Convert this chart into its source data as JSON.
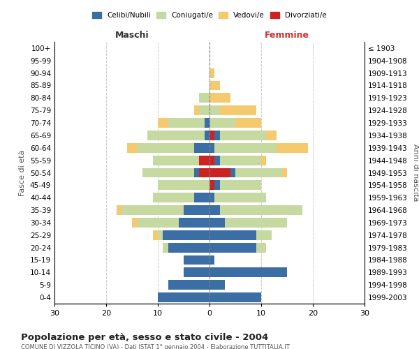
{
  "age_groups": [
    "0-4",
    "5-9",
    "10-14",
    "15-19",
    "20-24",
    "25-29",
    "30-34",
    "35-39",
    "40-44",
    "45-49",
    "50-54",
    "55-59",
    "60-64",
    "65-69",
    "70-74",
    "75-79",
    "80-84",
    "85-89",
    "90-94",
    "95-99",
    "100+"
  ],
  "birth_years": [
    "1999-2003",
    "1994-1998",
    "1989-1993",
    "1984-1988",
    "1979-1983",
    "1974-1978",
    "1969-1973",
    "1964-1968",
    "1959-1963",
    "1954-1958",
    "1949-1953",
    "1944-1948",
    "1939-1943",
    "1934-1938",
    "1929-1933",
    "1924-1928",
    "1919-1923",
    "1914-1918",
    "1909-1913",
    "1904-1908",
    "≤ 1903"
  ],
  "colors": {
    "celibi": "#3a6ea5",
    "coniugati": "#c5d9a0",
    "vedovi": "#f5c96e",
    "divorziati": "#cc2222"
  },
  "maschi": {
    "celibi": [
      10,
      8,
      5,
      5,
      8,
      9,
      6,
      5,
      3,
      0,
      1,
      0,
      3,
      1,
      1,
      0,
      0,
      0,
      0,
      0,
      0
    ],
    "coniugati": [
      0,
      0,
      0,
      0,
      1,
      1,
      8,
      12,
      8,
      10,
      10,
      9,
      11,
      11,
      7,
      2,
      2,
      0,
      0,
      0,
      0
    ],
    "vedovi": [
      0,
      0,
      0,
      0,
      0,
      1,
      1,
      1,
      0,
      0,
      0,
      0,
      2,
      0,
      2,
      1,
      0,
      0,
      0,
      0,
      0
    ],
    "divorziati": [
      0,
      0,
      0,
      0,
      0,
      0,
      0,
      0,
      0,
      0,
      2,
      2,
      0,
      0,
      0,
      0,
      0,
      0,
      0,
      0,
      0
    ]
  },
  "femmine": {
    "celibi": [
      10,
      3,
      15,
      1,
      9,
      9,
      3,
      2,
      1,
      1,
      1,
      1,
      1,
      1,
      0,
      0,
      0,
      0,
      0,
      0,
      0
    ],
    "coniugati": [
      0,
      0,
      0,
      0,
      2,
      3,
      12,
      16,
      10,
      8,
      9,
      8,
      12,
      9,
      5,
      2,
      0,
      0,
      0,
      0,
      0
    ],
    "vedovi": [
      0,
      0,
      0,
      0,
      0,
      0,
      0,
      0,
      0,
      0,
      1,
      1,
      6,
      2,
      5,
      7,
      4,
      2,
      1,
      0,
      0
    ],
    "divorziati": [
      0,
      0,
      0,
      0,
      0,
      0,
      0,
      0,
      0,
      1,
      4,
      1,
      0,
      1,
      0,
      0,
      0,
      0,
      0,
      0,
      0
    ]
  },
  "title": "Popolazione per età, sesso e stato civile - 2004",
  "subtitle": "COMUNE DI VIZZOLA TICINO (VA) - Dati ISTAT 1° gennaio 2004 - Elaborazione TUTTITALIA.IT",
  "ylabel_left": "Fasce di età",
  "ylabel_right": "Anni di nascita",
  "xlabel_left": "Maschi",
  "xlabel_right": "Femmine",
  "xlim": 30,
  "background_color": "#ffffff",
  "grid_color": "#cccccc"
}
